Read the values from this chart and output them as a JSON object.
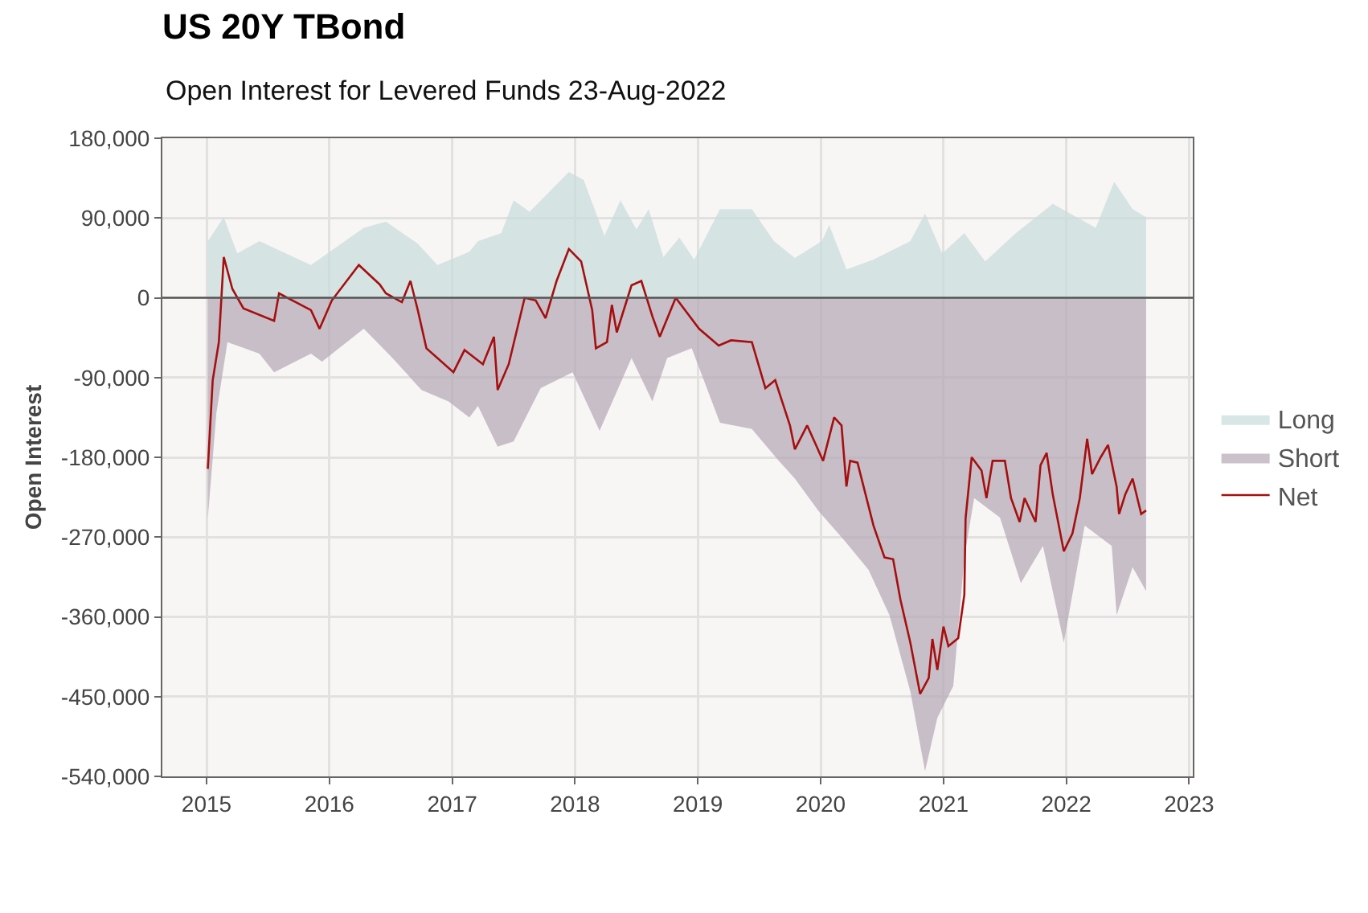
{
  "chart_data": {
    "type": "area",
    "title": "US 20Y TBond",
    "subtitle": "Open Interest for Levered Funds 23-Aug-2022",
    "ylabel": "Open Interest",
    "xlim": [
      2014.64,
      2023.03
    ],
    "xticks": [
      2015,
      2016,
      2017,
      2018,
      2019,
      2020,
      2021,
      2022,
      2023
    ],
    "ylim": [
      -540000,
      180000
    ],
    "yticks": [
      {
        "value": 180000,
        "label": "180,000"
      },
      {
        "value": 90000,
        "label": "90,000"
      },
      {
        "value": 0,
        "label": "0"
      },
      {
        "value": -90000,
        "label": "-90,000"
      },
      {
        "value": -180000,
        "label": "-180,000"
      },
      {
        "value": -270000,
        "label": "-270,000"
      },
      {
        "value": -360000,
        "label": "-360,000"
      },
      {
        "value": -450000,
        "label": "-450,000"
      },
      {
        "value": -540000,
        "label": "-540,000"
      }
    ],
    "grid": true,
    "legend": "right",
    "ref_lines": [
      {
        "axis": "y",
        "value": 0,
        "color": "#555555"
      }
    ],
    "series": [
      {
        "name": "Long",
        "color": "#c8dcdc",
        "x": [
          2015.01,
          2015.14,
          2015.25,
          2015.43,
          2015.85,
          2016.28,
          2016.46,
          2016.72,
          2016.88,
          2017.14,
          2017.21,
          2017.4,
          2017.5,
          2017.63,
          2017.95,
          2018.07,
          2018.24,
          2018.37,
          2018.5,
          2018.6,
          2018.72,
          2018.85,
          2018.97,
          2019.18,
          2019.44,
          2019.62,
          2019.79,
          2020.01,
          2020.07,
          2020.21,
          2020.43,
          2020.73,
          2020.85,
          2020.99,
          2021.17,
          2021.34,
          2021.59,
          2021.89,
          2022.24,
          2022.39,
          2022.54,
          2022.65
        ],
        "values": [
          64000,
          91000,
          50000,
          64000,
          37000,
          79000,
          86000,
          61000,
          37000,
          52000,
          64000,
          73000,
          110000,
          97000,
          142000,
          133000,
          70000,
          110000,
          77000,
          100000,
          46000,
          68000,
          43000,
          100000,
          100000,
          64000,
          45000,
          64000,
          82000,
          32000,
          43000,
          64000,
          95000,
          50000,
          73000,
          41000,
          73000,
          106000,
          79000,
          131000,
          100000,
          91000
        ]
      },
      {
        "name": "Short",
        "color": "#b3a7b3",
        "x": [
          2015.01,
          2015.08,
          2015.17,
          2015.43,
          2015.55,
          2015.85,
          2015.94,
          2016.28,
          2016.5,
          2016.75,
          2016.97,
          2017.14,
          2017.21,
          2017.37,
          2017.5,
          2017.72,
          2017.98,
          2018.2,
          2018.46,
          2018.63,
          2018.75,
          2018.95,
          2019.18,
          2019.44,
          2019.66,
          2019.79,
          2019.98,
          2020.2,
          2020.39,
          2020.56,
          2020.73,
          2020.85,
          2020.95,
          2021.08,
          2021.17,
          2021.25,
          2021.46,
          2021.63,
          2021.81,
          2021.98,
          2022.15,
          2022.37,
          2022.41,
          2022.54,
          2022.65
        ],
        "values": [
          -249000,
          -130000,
          -50000,
          -63000,
          -84000,
          -63000,
          -72000,
          -35000,
          -66000,
          -104000,
          -117000,
          -135000,
          -122000,
          -168000,
          -162000,
          -102000,
          -84000,
          -150000,
          -68000,
          -117000,
          -68000,
          -57000,
          -141000,
          -148000,
          -184000,
          -204000,
          -240000,
          -275000,
          -307000,
          -358000,
          -444000,
          -534000,
          -474000,
          -438000,
          -293000,
          -226000,
          -248000,
          -322000,
          -280000,
          -389000,
          -257000,
          -280000,
          -358000,
          -304000,
          -331000
        ]
      },
      {
        "name": "Net",
        "type": "line",
        "color": "#a50f0f",
        "x": [
          2015.01,
          2015.05,
          2015.1,
          2015.14,
          2015.21,
          2015.3,
          2015.55,
          2015.59,
          2015.85,
          2015.92,
          2016.02,
          2016.24,
          2016.41,
          2016.46,
          2016.59,
          2016.66,
          2016.72,
          2016.79,
          2016.88,
          2017.01,
          2017.1,
          2017.25,
          2017.34,
          2017.37,
          2017.46,
          2017.59,
          2017.68,
          2017.76,
          2017.85,
          2017.95,
          2018.05,
          2018.14,
          2018.17,
          2018.26,
          2018.3,
          2018.34,
          2018.46,
          2018.54,
          2018.63,
          2018.69,
          2018.82,
          2019.01,
          2019.17,
          2019.27,
          2019.44,
          2019.55,
          2019.63,
          2019.75,
          2019.79,
          2019.89,
          2020.02,
          2020.11,
          2020.17,
          2020.21,
          2020.24,
          2020.3,
          2020.43,
          2020.52,
          2020.59,
          2020.65,
          2020.73,
          2020.81,
          2020.88,
          2020.91,
          2020.95,
          2021.0,
          2021.04,
          2021.12,
          2021.17,
          2021.18,
          2021.23,
          2021.31,
          2021.35,
          2021.4,
          2021.5,
          2021.55,
          2021.62,
          2021.66,
          2021.75,
          2021.79,
          2021.84,
          2021.89,
          2021.98,
          2022.05,
          2022.11,
          2022.17,
          2022.21,
          2022.28,
          2022.34,
          2022.41,
          2022.43,
          2022.48,
          2022.54,
          2022.61,
          2022.65
        ],
        "values": [
          -193000,
          -93000,
          -50000,
          46000,
          10000,
          -12000,
          -26000,
          5000,
          -14000,
          -35000,
          -3000,
          37000,
          15000,
          5000,
          -5000,
          19000,
          -14000,
          -57000,
          -68000,
          -84000,
          -59000,
          -75000,
          -44000,
          -104000,
          -75000,
          0,
          -3000,
          -23000,
          19000,
          55000,
          41000,
          -14000,
          -57000,
          -50000,
          -8000,
          -39000,
          14000,
          19000,
          -21000,
          -44000,
          0,
          -35000,
          -54000,
          -48000,
          -50000,
          -102000,
          -93000,
          -144000,
          -171000,
          -144000,
          -184000,
          -135000,
          -144000,
          -213000,
          -184000,
          -186000,
          -257000,
          -293000,
          -295000,
          -341000,
          -389000,
          -447000,
          -429000,
          -385000,
          -420000,
          -371000,
          -393000,
          -384000,
          -335000,
          -249000,
          -180000,
          -195000,
          -226000,
          -184000,
          -184000,
          -226000,
          -253000,
          -226000,
          -253000,
          -189000,
          -175000,
          -222000,
          -286000,
          -266000,
          -226000,
          -159000,
          -199000,
          -180000,
          -166000,
          -213000,
          -244000,
          -222000,
          -204000,
          -244000,
          -240000
        ]
      }
    ]
  }
}
